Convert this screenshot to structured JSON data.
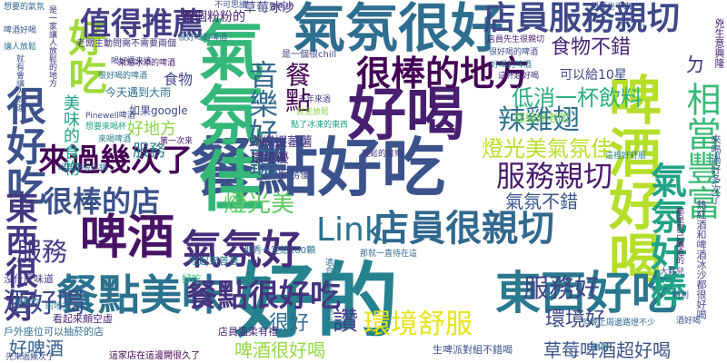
{
  "words": [
    {
      "id": "w01",
      "text": "好的",
      "color": "#26828e",
      "vertical": false
    },
    {
      "id": "w02",
      "text": "氣氛很好",
      "color": "#2e6e8e",
      "vertical": false
    },
    {
      "id": "w03",
      "text": "餐點好吃",
      "color": "#3b528b",
      "vertical": false
    },
    {
      "id": "w04",
      "text": "氣氛佳",
      "color": "#35b779",
      "vertical": true
    },
    {
      "id": "w05",
      "text": "好喝",
      "color": "#481f70",
      "vertical": false
    },
    {
      "id": "w06",
      "text": "啤酒好喝",
      "color": "#b5de2b",
      "vertical": true
    },
    {
      "id": "w07",
      "text": "東西好吃",
      "color": "#2a788e",
      "vertical": false
    },
    {
      "id": "w08",
      "text": "很棒的地方",
      "color": "#440154",
      "vertical": false
    },
    {
      "id": "w09",
      "text": "店員服務親切",
      "color": "#3e4989",
      "vertical": false
    },
    {
      "id": "w10",
      "text": "餐點美味",
      "color": "#2c728e",
      "vertical": false
    },
    {
      "id": "w11",
      "text": "店員很親切",
      "color": "#31688e",
      "vertical": false
    },
    {
      "id": "w12",
      "text": "啤酒",
      "color": "#471365",
      "vertical": false
    },
    {
      "id": "w13",
      "text": "氣氛好",
      "color": "#472d7b",
      "vertical": false
    },
    {
      "id": "w14",
      "text": "很好吃",
      "color": "#3b528b",
      "vertical": true
    },
    {
      "id": "w15",
      "text": "好吃",
      "color": "#a0da39",
      "vertical": true
    },
    {
      "id": "w16",
      "text": "值得推薦",
      "color": "#433e85",
      "vertical": false
    },
    {
      "id": "w17",
      "text": "東西很好",
      "color": "#453781",
      "vertical": true
    },
    {
      "id": "w18",
      "text": "來過幾次了",
      "color": "#440154",
      "vertical": false
    },
    {
      "id": "w19",
      "text": "很棒的店",
      "color": "#3b528b",
      "vertical": false
    },
    {
      "id": "w20",
      "text": "Link",
      "color": "#2c728e",
      "vertical": false
    },
    {
      "id": "w21",
      "text": "氣氛好棒",
      "color": "#20a386",
      "vertical": true
    },
    {
      "id": "w22",
      "text": "餐點很好吃",
      "color": "#46337e",
      "vertical": false
    },
    {
      "id": "w23",
      "text": "環境舒服",
      "color": "#e7e419",
      "vertical": false
    },
    {
      "id": "w24",
      "text": "酒好喝",
      "color": "#3e4a89",
      "vertical": false
    },
    {
      "id": "w25",
      "text": "服務",
      "color": "#443983",
      "vertical": false
    },
    {
      "id": "w26",
      "text": "服務親切",
      "color": "#481b6d",
      "vertical": false
    },
    {
      "id": "w27",
      "text": "服務好",
      "color": "#414487",
      "vertical": false
    },
    {
      "id": "w28",
      "text": "辣雞翅",
      "color": "#2d708e",
      "vertical": false
    },
    {
      "id": "w29",
      "text": "相當豐富",
      "color": "#3aba76",
      "vertical": true
    },
    {
      "id": "w30",
      "text": "音樂好聽",
      "color": "#31688e",
      "vertical": true
    },
    {
      "id": "w31",
      "text": "燈光美氣氛佳",
      "color": "#b8de29",
      "vertical": false
    },
    {
      "id": "w32",
      "text": "燈光美",
      "color": "#5ec962",
      "vertical": false
    },
    {
      "id": "w33",
      "text": "低消一杯飲料",
      "color": "#29af7f",
      "vertical": false
    },
    {
      "id": "w34",
      "text": "食物不錯",
      "color": "#482576",
      "vertical": false
    },
    {
      "id": "w35",
      "text": "餐點",
      "color": "#440154",
      "vertical": true
    },
    {
      "id": "w36",
      "text": "環境好",
      "color": "#3f4788",
      "vertical": false
    },
    {
      "id": "w37",
      "text": "草莓啤酒超好喝",
      "color": "#3b528b",
      "vertical": false
    },
    {
      "id": "w38",
      "text": "啤酒很好喝",
      "color": "#95d840",
      "vertical": false
    },
    {
      "id": "w39",
      "text": "讚",
      "color": "#433e85",
      "vertical": false
    },
    {
      "id": "w40",
      "text": "很好",
      "color": "#2e6e8e",
      "vertical": false
    },
    {
      "id": "w41",
      "text": "氣氛不錯",
      "color": "#39558c",
      "vertical": false
    },
    {
      "id": "w42",
      "text": "好啤酒",
      "color": "#355f8d",
      "vertical": false
    },
    {
      "id": "w43",
      "text": "好地方",
      "color": "#8bd646",
      "vertical": false
    },
    {
      "id": "w44",
      "text": "服務",
      "color": "#2a788e",
      "vertical": false
    },
    {
      "id": "w45",
      "text": "美味的食物",
      "color": "#1fa088",
      "vertical": true
    },
    {
      "id": "w46",
      "text": "食物",
      "color": "#3e4989",
      "vertical": false
    },
    {
      "id": "w47",
      "text": "整個粉粉的",
      "color": "#481f70",
      "vertical": false
    },
    {
      "id": "w48",
      "text": "草莓冰沙",
      "color": "#404688",
      "vertical": false
    },
    {
      "id": "w49",
      "text": "可以給10星",
      "color": "#404688",
      "vertical": false
    },
    {
      "id": "w50",
      "text": "超級好老闆",
      "color": "#7ad151",
      "vertical": false
    },
    {
      "id": "w51",
      "text": "蝴蝶蝦蕃薯",
      "color": "#453781",
      "vertical": false
    },
    {
      "id": "w52",
      "text": "環境優",
      "color": "#482878",
      "vertical": false
    },
    {
      "id": "w53",
      "text": "服務優",
      "color": "#3e4989",
      "vertical": false
    },
    {
      "id": "w54",
      "text": "如果google",
      "color": "#3e4989",
      "vertical": false
    },
    {
      "id": "w55",
      "text": "今天遇到大雨",
      "color": "#2e6e8e",
      "vertical": false
    },
    {
      "id": "w56",
      "text": "沒什麼味道",
      "color": "#424086",
      "vertical": false
    },
    {
      "id": "w57",
      "text": "看起來頗空虛",
      "color": "#482878",
      "vertical": false
    },
    {
      "id": "w58",
      "text": "戶外座位可以抽菸的店",
      "color": "#2f6c8e",
      "vertical": false
    },
    {
      "id": "w59",
      "text": "先來過幾次了",
      "color": "#3e4a89",
      "vertical": false
    },
    {
      "id": "w60",
      "text": "吃起來普普",
      "color": "#26828e",
      "vertical": false
    },
    {
      "id": "w61",
      "text": "那秀一定給100顆",
      "color": "#2c728e",
      "vertical": false
    },
    {
      "id": "w62",
      "text": "店員溫柔有禮",
      "color": "#482475",
      "vertical": false
    },
    {
      "id": "w63",
      "text": "生啤派對組不錯喝",
      "color": "#3b528b",
      "vertical": false
    },
    {
      "id": "w64",
      "text": "這家店在這邊開很久了",
      "color": "#440154",
      "vertical": false
    },
    {
      "id": "w65",
      "text": "想要來喝杯",
      "color": "#20a386",
      "vertical": false
    },
    {
      "id": "w66",
      "text": "老闆主動問需不需要兩個",
      "color": "#46337e",
      "vertical": false
    },
    {
      "id": "w67",
      "text": "很好喝的啤酒",
      "color": "#31688e",
      "vertical": false
    },
    {
      "id": "w68",
      "text": "去年來過",
      "color": "#46327e",
      "vertical": false
    },
    {
      "id": "w69",
      "text": "就是放鬆",
      "color": "#8bd646",
      "vertical": false
    },
    {
      "id": "w70",
      "text": "那就一直待在這",
      "color": "#31688e",
      "vertical": false
    },
    {
      "id": "w71",
      "text": "是一個很chill",
      "color": "#404688",
      "vertical": false
    },
    {
      "id": "w72",
      "text": "點了冰凍的東西",
      "color": "#1f9e89",
      "vertical": false
    },
    {
      "id": "w73",
      "text": "喝好酒來這",
      "color": "#3e4989",
      "vertical": false
    },
    {
      "id": "w74",
      "text": "第一次來",
      "color": "#481769",
      "vertical": false
    },
    {
      "id": "w75",
      "text": "輕鬆的音樂",
      "color": "#453781",
      "vertical": false
    },
    {
      "id": "w76",
      "text": "很好喝的啤酒",
      "color": "#2d708e",
      "vertical": false
    },
    {
      "id": "w77",
      "text": "適合聊天的好地方",
      "color": "#2c728e",
      "vertical": true
    },
    {
      "id": "w78",
      "text": "啤酒好喝",
      "color": "#39568c",
      "vertical": false
    },
    {
      "id": "w79",
      "text": "想要的氣氛",
      "color": "#32658e",
      "vertical": false
    },
    {
      "id": "w80",
      "text": "不可思議",
      "color": "#3b528b",
      "vertical": false
    },
    {
      "id": "w81",
      "text": "是一家讓人放鬆的地方",
      "color": "#472c7a",
      "vertical": true
    },
    {
      "id": "w82",
      "text": "來喝啤酒",
      "color": "#287c8e",
      "vertical": false
    },
    {
      "id": "w83",
      "text": "讓人放鬆",
      "color": "#2d718e",
      "vertical": false
    },
    {
      "id": "w84",
      "text": "店員先生很親切",
      "color": "#482173",
      "vertical": false
    },
    {
      "id": "w85",
      "text": "很好喝的啤酒",
      "color": "#3d4d8a",
      "vertical": false
    },
    {
      "id": "w86",
      "text": "好喝的啤酒",
      "color": "#2a778e",
      "vertical": false
    },
    {
      "id": "w87",
      "text": "但晚上周邊路燈不少",
      "color": "#31678e",
      "vertical": false
    },
    {
      "id": "w88",
      "text": "來點冰涼的啤酒",
      "color": "#481a6c",
      "vertical": false
    },
    {
      "id": "w89",
      "text": "都是自己釀造的",
      "color": "#471365",
      "vertical": true
    },
    {
      "id": "w90",
      "text": "來喝過好多次了",
      "color": "#3b528b",
      "vertical": true
    },
    {
      "id": "w91",
      "text": "熱紅酒和啤酒冰沙都很好喝",
      "color": "#3f4788",
      "vertical": true
    },
    {
      "id": "w92",
      "text": "ㄉ",
      "color": "#46327e",
      "vertical": false
    },
    {
      "id": "w93",
      "text": "兇生意興隆",
      "color": "#481a6c",
      "vertical": true
    },
    {
      "id": "w94",
      "text": "Pinewell啤酒",
      "color": "#3e4989",
      "vertical": false
    },
    {
      "id": "w95",
      "text": "喝起來很不錯",
      "color": "#2e6e8e",
      "vertical": false
    },
    {
      "id": "w96",
      "text": "這杯超好喝",
      "color": "#46307e",
      "vertical": false
    },
    {
      "id": "w97",
      "text": "就有會讓人流連",
      "color": "#3b528b",
      "vertical": true
    },
    {
      "id": "w98",
      "text": "想要坐下來",
      "color": "#3d4e8a",
      "vertical": false
    },
    {
      "id": "w99",
      "text": "這裡好舒服",
      "color": "#27808e",
      "vertical": false
    },
    {
      "id": "w100",
      "text": "特別",
      "color": "#3b528b",
      "vertical": false
    },
    {
      "id": "w101",
      "text": "感覺的",
      "color": "#2b758e",
      "vertical": false
    },
    {
      "id": "w102",
      "text": "會再訪",
      "color": "#46307e",
      "vertical": false
    },
    {
      "id": "w103",
      "text": "的地方",
      "color": "#25838e",
      "vertical": false
    },
    {
      "id": "w104",
      "text": "大夥兒",
      "color": "#3e4a89",
      "vertical": false
    },
    {
      "id": "w105",
      "text": "讚歡",
      "color": "#2e6f8e",
      "vertical": false
    },
    {
      "id": "w106",
      "text": "酒好喝",
      "color": "#3c4f8a",
      "vertical": false
    },
    {
      "id": "w107",
      "text": "好吃",
      "color": "#35b779",
      "vertical": false
    }
  ]
}
